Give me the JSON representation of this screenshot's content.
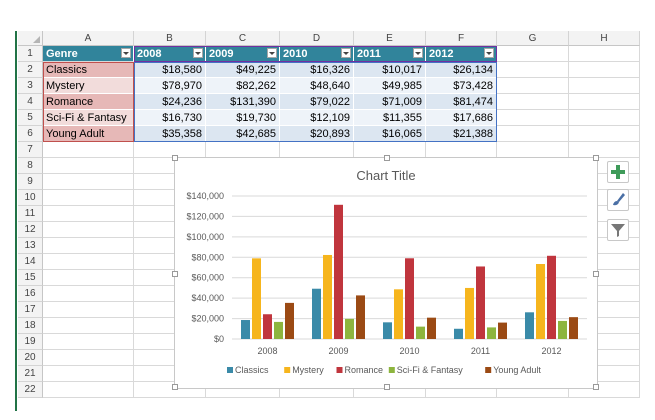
{
  "columns": [
    "A",
    "B",
    "C",
    "D",
    "E",
    "F",
    "G",
    "H"
  ],
  "rows": [
    "1",
    "2",
    "3",
    "4",
    "5",
    "6",
    "7",
    "8",
    "9",
    "10",
    "11",
    "12",
    "13",
    "14",
    "15",
    "16",
    "17",
    "18",
    "19",
    "20",
    "21",
    "22"
  ],
  "table": {
    "headers": [
      "Genre",
      "2008",
      "2009",
      "2010",
      "2011",
      "2012"
    ],
    "rows": [
      [
        "Classics",
        "$18,580",
        "$49,225",
        "$16,326",
        "$10,017",
        "$26,134"
      ],
      [
        "Mystery",
        "$78,970",
        "$82,262",
        "$48,640",
        "$49,985",
        "$73,428"
      ],
      [
        "Romance",
        "$24,236",
        "$131,390",
        "$79,022",
        "$71,009",
        "$81,474"
      ],
      [
        "Sci-Fi & Fantasy",
        "$16,730",
        "$19,730",
        "$12,109",
        "$11,355",
        "$17,686"
      ],
      [
        "Young Adult",
        "$35,358",
        "$42,685",
        "$20,893",
        "$16,065",
        "$21,388"
      ]
    ]
  },
  "chart_data": {
    "type": "bar",
    "title": "Chart Title",
    "categories": [
      "2008",
      "2009",
      "2010",
      "2011",
      "2012"
    ],
    "ylim": [
      0,
      140000
    ],
    "yticks": [
      "$0",
      "$20,000",
      "$40,000",
      "$60,000",
      "$80,000",
      "$100,000",
      "$120,000",
      "$140,000"
    ],
    "grid": true,
    "legend": "bottom",
    "series": [
      {
        "name": "Classics",
        "color": "#3a8aa8",
        "values": [
          18580,
          49225,
          16326,
          10017,
          26134
        ]
      },
      {
        "name": "Mystery",
        "color": "#f6b51d",
        "values": [
          78970,
          82262,
          48640,
          49985,
          73428
        ]
      },
      {
        "name": "Romance",
        "color": "#c0353d",
        "values": [
          24236,
          131390,
          79022,
          71009,
          81474
        ]
      },
      {
        "name": "Sci-Fi & Fantasy",
        "color": "#8db53e",
        "values": [
          16730,
          19730,
          12109,
          11355,
          17686
        ]
      },
      {
        "name": "Young Adult",
        "color": "#9b4a14",
        "values": [
          35358,
          42685,
          20893,
          16065,
          21388
        ]
      }
    ]
  },
  "side_buttons": [
    {
      "name": "chart-elements-button",
      "icon": "plus-icon"
    },
    {
      "name": "chart-styles-button",
      "icon": "brush-icon"
    },
    {
      "name": "chart-filters-button",
      "icon": "filter-icon"
    }
  ]
}
